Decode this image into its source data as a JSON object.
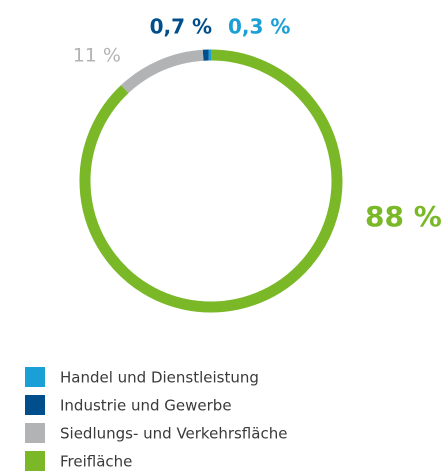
{
  "chart_data": {
    "type": "donut",
    "series": [
      {
        "name": "Handel und Dienstleistung",
        "color": "#1a9fd6",
        "values": [
          0.3
        ],
        "value_labels": [
          "0,3 %"
        ]
      },
      {
        "name": "Industrie und Gewerbe",
        "color": "#004f8c",
        "values": [
          0.7
        ],
        "value_labels": [
          "0,7 %"
        ]
      },
      {
        "name": "Siedlungs- und Verkehrsfläche",
        "color": "#b2b3b5",
        "values": [
          11
        ],
        "value_labels": [
          "11 %"
        ]
      },
      {
        "name": "Freifläche",
        "color": "#7ab828",
        "values": [
          88
        ],
        "value_labels": [
          "88 %"
        ]
      }
    ]
  }
}
